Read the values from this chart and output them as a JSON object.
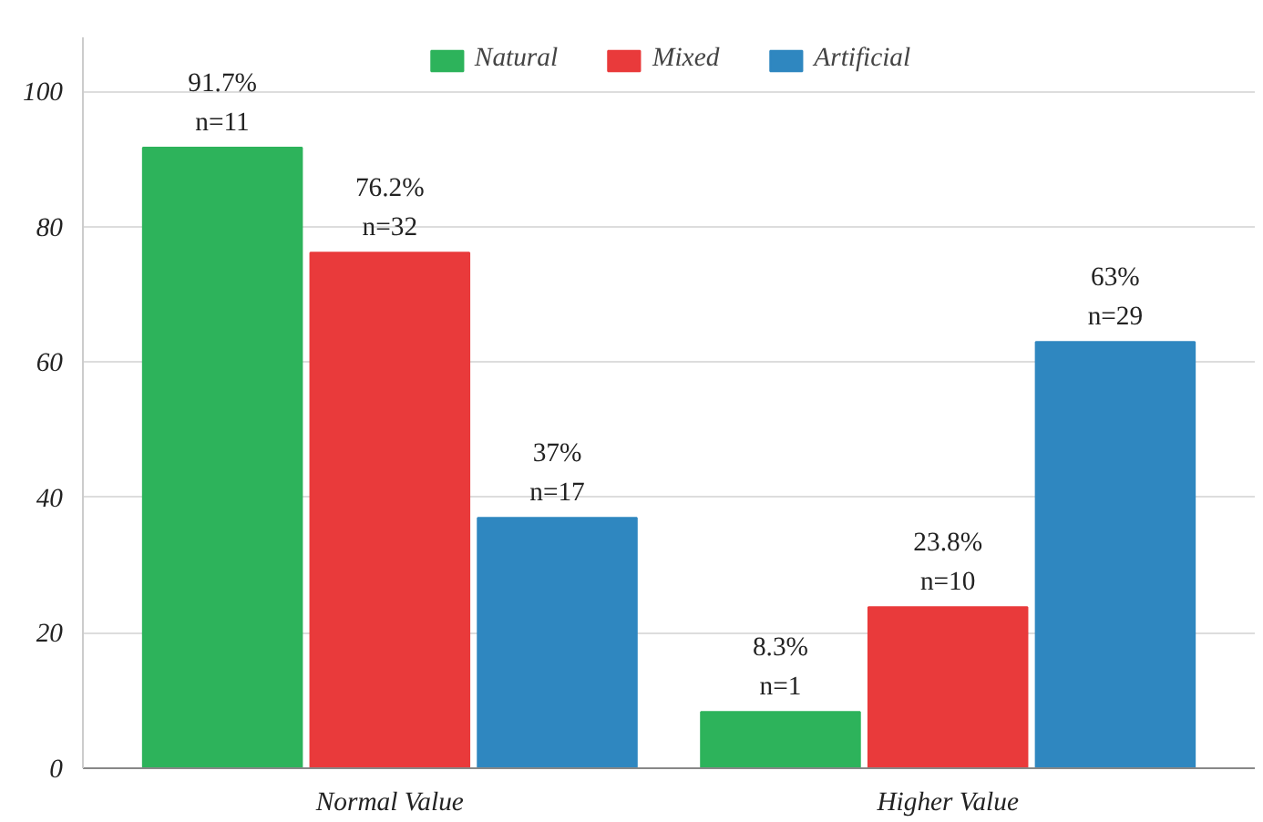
{
  "chart_data": {
    "type": "bar",
    "categories": [
      "Normal Value",
      "Higher Value"
    ],
    "series": [
      {
        "name": "Natural",
        "color": "#2db35b",
        "values": [
          91.7,
          8.3
        ],
        "value_labels": [
          "91.7%\nn=11",
          "8.3%\nn=1"
        ]
      },
      {
        "name": "Mixed",
        "color": "#e93a3b",
        "values": [
          76.2,
          23.8
        ],
        "value_labels": [
          "76.2%\nn=32",
          "23.8%\nn=10"
        ]
      },
      {
        "name": "Artificial",
        "color": "#2f87c0",
        "values": [
          37,
          63
        ],
        "value_labels": [
          "37%\nn=17",
          "63%\nn=29"
        ]
      }
    ],
    "ylim": [
      0,
      108
    ],
    "yticks": [
      0,
      20,
      40,
      60,
      80,
      100
    ],
    "grid": "y",
    "legend": "top"
  }
}
